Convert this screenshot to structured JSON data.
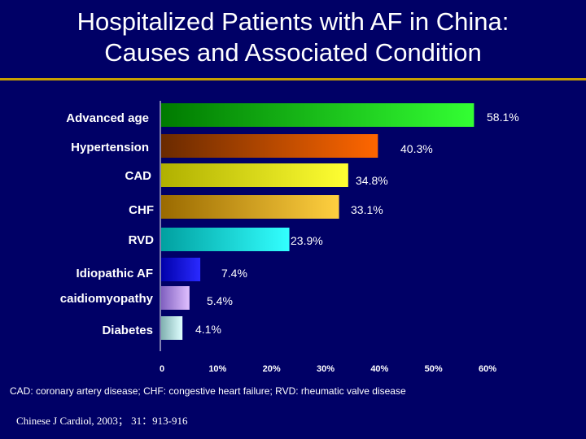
{
  "slide": {
    "title_line1": "Hospitalized Patients  with AF in China:",
    "title_line2": "Causes and Associated Condition",
    "footnote": "CAD: coronary artery disease; CHF: congestive heart failure; RVD: rheumatic valve disease",
    "citation": "Chinese J Cardiol, 2003； 31：913-916"
  },
  "chart_data": {
    "type": "bar",
    "orientation": "horizontal",
    "title": "",
    "xlabel": "",
    "ylabel": "",
    "xlim": [
      0,
      60
    ],
    "x_ticks": [
      "0",
      "10%",
      "20%",
      "30%",
      "40%",
      "50%",
      "60%"
    ],
    "grid": false,
    "categories": [
      "Advanced age",
      "Hypertension",
      "CAD",
      "CHF",
      "RVD",
      "Idiopathic AF",
      "caidiomyopathy",
      "Diabetes"
    ],
    "values": [
      58.1,
      40.3,
      34.8,
      33.1,
      23.9,
      7.4,
      5.4,
      4.1
    ],
    "value_labels": [
      "58.1%",
      "40.3%",
      "34.8%",
      "33.1%",
      "23.9%",
      "7.4%",
      "5.4%",
      "4.1%"
    ],
    "colors": [
      [
        "#007a00",
        "#33ff33"
      ],
      [
        "#6a2a00",
        "#ff6600"
      ],
      [
        "#b0b000",
        "#ffff33"
      ],
      [
        "#9a6a00",
        "#ffd040"
      ],
      [
        "#00a0a0",
        "#33ffff"
      ],
      [
        "#0000aa",
        "#2a2aff"
      ],
      [
        "#8060c0",
        "#e0c0ff"
      ],
      [
        "#80b0b0",
        "#e0ffff"
      ]
    ]
  }
}
